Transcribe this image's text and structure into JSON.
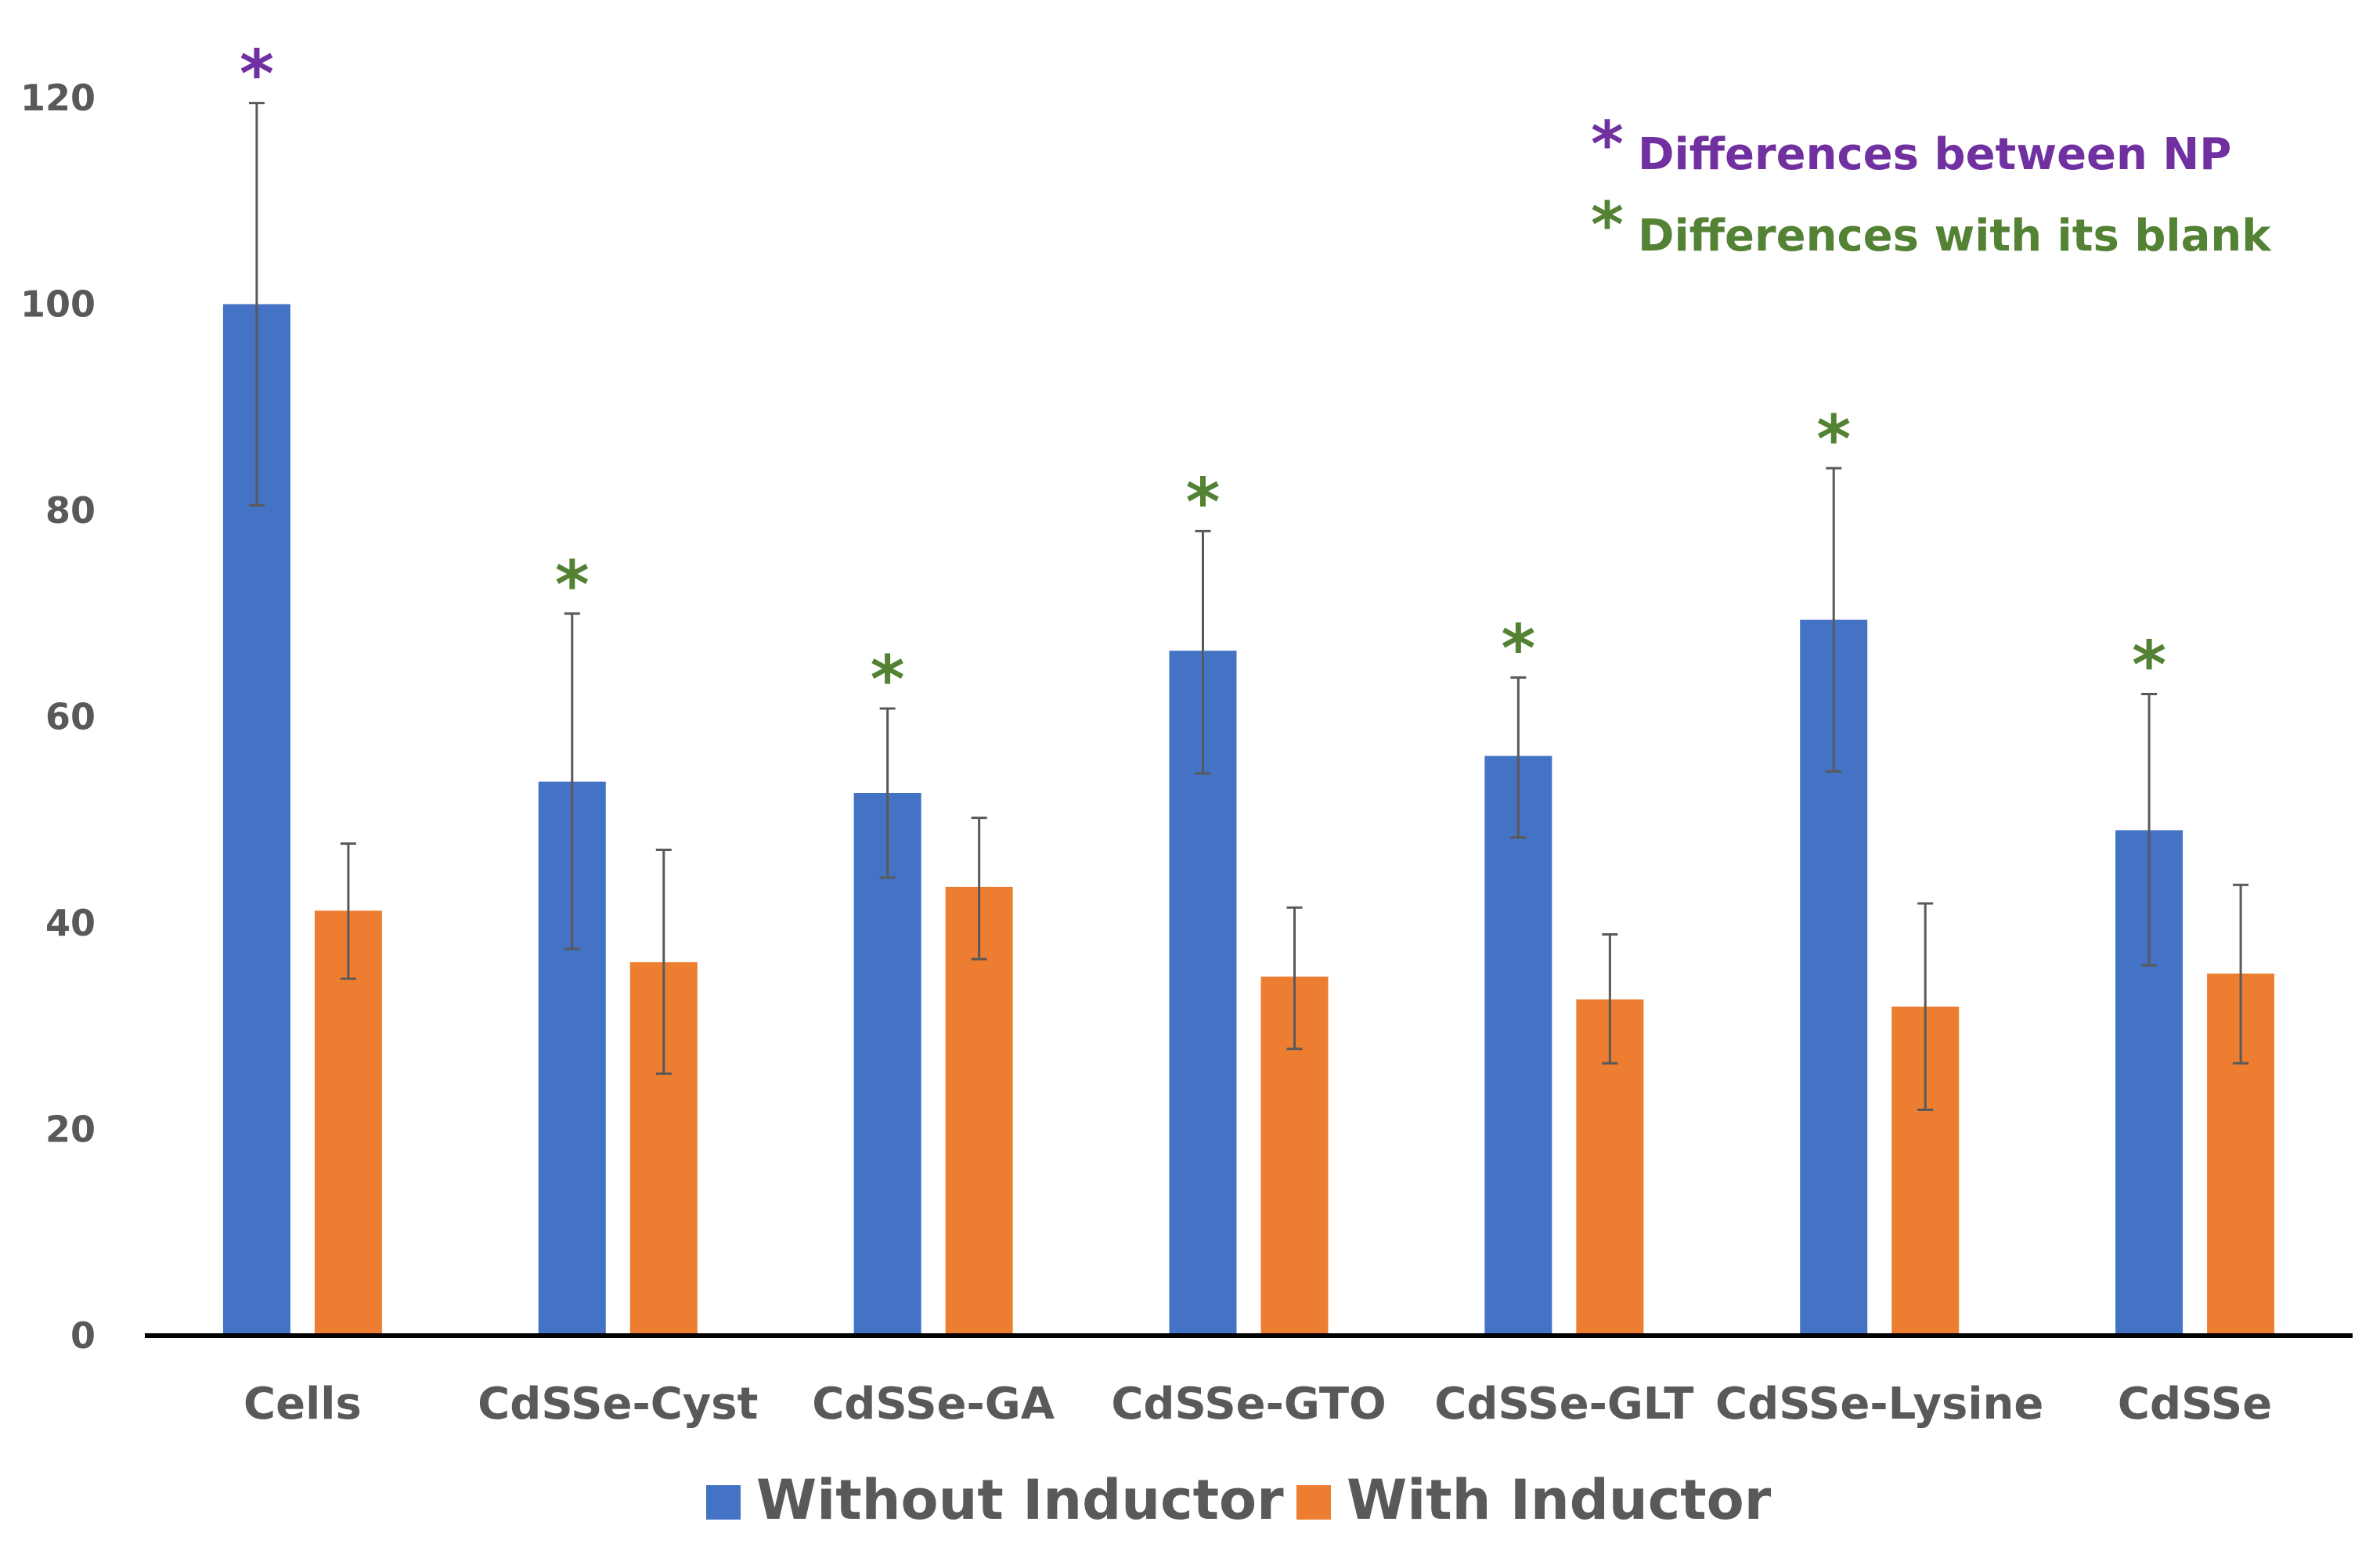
{
  "chart_data": {
    "type": "bar",
    "title": "",
    "xlabel": "",
    "ylabel": "",
    "ylim": [
      0,
      120
    ],
    "yticks": [
      "0",
      "20",
      "40",
      "60",
      "80",
      "100",
      "120"
    ],
    "categories": [
      "Cells",
      "CdSSe-Cyst",
      "CdSSe-GA",
      "CdSSe-GTO",
      "CdSSe-GLT",
      "CdSSe-Lysine",
      "CdSSe"
    ],
    "series": [
      {
        "name": "Without Inductor",
        "color": "#4472C4",
        "values": [
          100,
          53.7,
          52.6,
          66.4,
          56.2,
          69.4,
          49
        ],
        "err_low": [
          80.5,
          37.5,
          44.4,
          54.5,
          48.3,
          54.7,
          35.9
        ],
        "err_high": [
          119.5,
          70,
          60.8,
          78,
          63.8,
          84.1,
          62.2
        ]
      },
      {
        "name": "With Inductor",
        "color": "#ED7D31",
        "values": [
          41.2,
          36.2,
          43.5,
          34.8,
          32.6,
          31.9,
          35.1
        ],
        "err_low": [
          34.6,
          25.4,
          36.5,
          27.8,
          26.4,
          21.9,
          26.4
        ],
        "err_high": [
          47.7,
          47.1,
          50.2,
          41.5,
          38.9,
          41.9,
          43.7
        ]
      }
    ],
    "significance": [
      {
        "category": "Cells",
        "type": "np"
      },
      {
        "category": "CdSSe-Cyst",
        "type": "blank"
      },
      {
        "category": "CdSSe-GA",
        "type": "blank"
      },
      {
        "category": "CdSSe-GTO",
        "type": "blank"
      },
      {
        "category": "CdSSe-GLT",
        "type": "blank"
      },
      {
        "category": "CdSSe-Lysine",
        "type": "blank"
      },
      {
        "category": "CdSSe",
        "type": "blank"
      }
    ],
    "star_symbol": "*",
    "annotations": {
      "np": {
        "text": "Differences between NP",
        "color": "#7030A0"
      },
      "blank": {
        "text": "Differences with its blank",
        "color": "#548235"
      }
    },
    "legend_position": "bottom-center",
    "grid": false
  }
}
